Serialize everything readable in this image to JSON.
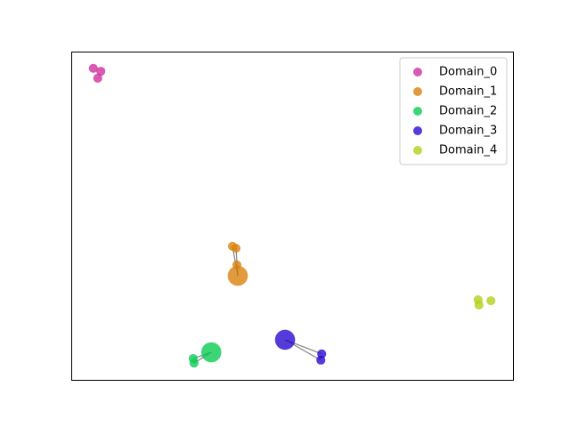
{
  "chart_data": {
    "type": "scatter",
    "xlim": [
      0,
      100
    ],
    "ylim": [
      0,
      100
    ],
    "legend": "upper right",
    "series": [
      {
        "name": "Domain_0",
        "color": "#d12f9e",
        "x": [
          5.0,
          6.7,
          6.0
        ],
        "values": [
          94.9,
          94.0,
          91.9
        ],
        "sizes": [
          40,
          40,
          40
        ]
      },
      {
        "name": "Domain_1",
        "color": "#d9820e",
        "x": [
          36.5,
          37.3,
          37.5,
          37.7
        ],
        "values": [
          40.7,
          40.1,
          35.0,
          31.7
        ],
        "sizes": [
          40,
          40,
          40,
          200
        ]
      },
      {
        "name": "Domain_2",
        "color": "#0ccc55",
        "x": [
          27.6,
          27.8,
          31.7
        ],
        "values": [
          6.5,
          5.1,
          8.4
        ],
        "sizes": [
          40,
          40,
          200
        ]
      },
      {
        "name": "Domain_3",
        "color": "#2a0ad0",
        "x": [
          56.7,
          56.5,
          48.4
        ],
        "values": [
          7.9,
          6.0,
          12.2
        ],
        "sizes": [
          40,
          40,
          200
        ]
      },
      {
        "name": "Domain_4",
        "color": "#b5cf1c",
        "x": [
          92.1,
          92.3,
          95.0
        ],
        "values": [
          24.4,
          22.8,
          24.1
        ],
        "sizes": [
          40,
          40,
          40
        ]
      }
    ]
  }
}
